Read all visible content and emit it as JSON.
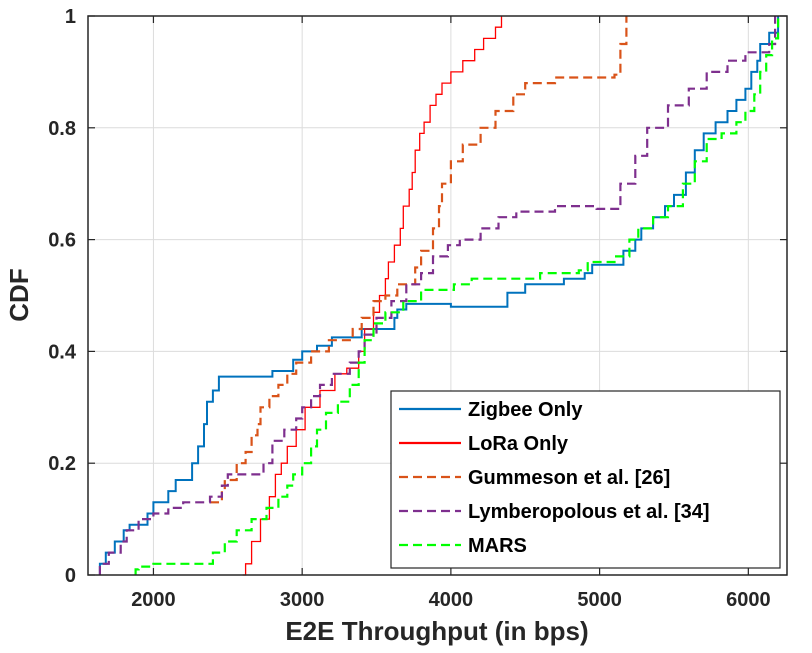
{
  "chart_data": {
    "type": "line",
    "step": true,
    "xlabel": "E2E Throughput (in bps)",
    "ylabel": "CDF",
    "xlim": [
      1560,
      6260
    ],
    "ylim": [
      0,
      1
    ],
    "xticks": [
      2000,
      3000,
      4000,
      5000,
      6000
    ],
    "yticks": [
      0,
      0.2,
      0.4,
      0.6,
      0.8,
      1
    ],
    "grid": true,
    "legend_position": "bottom-right",
    "series": [
      {
        "name": "Zigbee Only",
        "color": "#0072BD",
        "dash": "solid",
        "points": [
          [
            1640,
            0
          ],
          [
            1640,
            0.02
          ],
          [
            1680,
            0.04
          ],
          [
            1740,
            0.06
          ],
          [
            1800,
            0.08
          ],
          [
            1840,
            0.09
          ],
          [
            1960,
            0.11
          ],
          [
            2000,
            0.13
          ],
          [
            2100,
            0.15
          ],
          [
            2150,
            0.17
          ],
          [
            2260,
            0.2
          ],
          [
            2300,
            0.23
          ],
          [
            2340,
            0.27
          ],
          [
            2360,
            0.31
          ],
          [
            2400,
            0.33
          ],
          [
            2440,
            0.355
          ],
          [
            2800,
            0.365
          ],
          [
            2940,
            0.385
          ],
          [
            3000,
            0.4
          ],
          [
            3100,
            0.41
          ],
          [
            3200,
            0.425
          ],
          [
            3400,
            0.44
          ],
          [
            3620,
            0.46
          ],
          [
            3640,
            0.475
          ],
          [
            3700,
            0.485
          ],
          [
            4000,
            0.48
          ],
          [
            4380,
            0.505
          ],
          [
            4500,
            0.52
          ],
          [
            4760,
            0.53
          ],
          [
            4900,
            0.54
          ],
          [
            4950,
            0.555
          ],
          [
            5140,
            0.555
          ],
          [
            5160,
            0.58
          ],
          [
            5240,
            0.6
          ],
          [
            5280,
            0.62
          ],
          [
            5360,
            0.64
          ],
          [
            5440,
            0.66
          ],
          [
            5500,
            0.68
          ],
          [
            5580,
            0.72
          ],
          [
            5640,
            0.76
          ],
          [
            5700,
            0.79
          ],
          [
            5780,
            0.81
          ],
          [
            5860,
            0.83
          ],
          [
            5920,
            0.85
          ],
          [
            5980,
            0.87
          ],
          [
            6020,
            0.9
          ],
          [
            6060,
            0.92
          ],
          [
            6080,
            0.95
          ],
          [
            6140,
            0.97
          ],
          [
            6200,
            1.0
          ]
        ]
      },
      {
        "name": "LoRa Only",
        "color": "#FF0000",
        "dash": "solid",
        "points": [
          [
            2600,
            0
          ],
          [
            2620,
            0.02
          ],
          [
            2660,
            0.06
          ],
          [
            2720,
            0.1
          ],
          [
            2780,
            0.14
          ],
          [
            2820,
            0.18
          ],
          [
            2860,
            0.2
          ],
          [
            2900,
            0.23
          ],
          [
            2960,
            0.26
          ],
          [
            3020,
            0.3
          ],
          [
            3120,
            0.33
          ],
          [
            3220,
            0.36
          ],
          [
            3300,
            0.37
          ],
          [
            3380,
            0.4
          ],
          [
            3420,
            0.44
          ],
          [
            3480,
            0.47
          ],
          [
            3520,
            0.5
          ],
          [
            3560,
            0.53
          ],
          [
            3580,
            0.56
          ],
          [
            3620,
            0.59
          ],
          [
            3660,
            0.62
          ],
          [
            3680,
            0.66
          ],
          [
            3720,
            0.69
          ],
          [
            3740,
            0.72
          ],
          [
            3760,
            0.76
          ],
          [
            3790,
            0.79
          ],
          [
            3820,
            0.81
          ],
          [
            3860,
            0.84
          ],
          [
            3900,
            0.86
          ],
          [
            3940,
            0.88
          ],
          [
            4000,
            0.9
          ],
          [
            4080,
            0.92
          ],
          [
            4160,
            0.94
          ],
          [
            4220,
            0.96
          ],
          [
            4300,
            0.98
          ],
          [
            4340,
            1.0
          ]
        ]
      },
      {
        "name": "Gummeson et al. [26]",
        "color": "#D95319",
        "dash": "dashed",
        "points": [
          [
            2380,
            0.13
          ],
          [
            2460,
            0.15
          ],
          [
            2480,
            0.17
          ],
          [
            2560,
            0.2
          ],
          [
            2620,
            0.22
          ],
          [
            2660,
            0.25
          ],
          [
            2700,
            0.27
          ],
          [
            2720,
            0.3
          ],
          [
            2780,
            0.32
          ],
          [
            2840,
            0.34
          ],
          [
            2900,
            0.36
          ],
          [
            2960,
            0.38
          ],
          [
            3060,
            0.4
          ],
          [
            3180,
            0.42
          ],
          [
            3340,
            0.44
          ],
          [
            3400,
            0.46
          ],
          [
            3480,
            0.49
          ],
          [
            3560,
            0.5
          ],
          [
            3640,
            0.52
          ],
          [
            3760,
            0.55
          ],
          [
            3800,
            0.58
          ],
          [
            3880,
            0.62
          ],
          [
            3920,
            0.66
          ],
          [
            3940,
            0.7
          ],
          [
            4000,
            0.74
          ],
          [
            4080,
            0.77
          ],
          [
            4200,
            0.8
          ],
          [
            4300,
            0.83
          ],
          [
            4420,
            0.86
          ],
          [
            4500,
            0.88
          ],
          [
            4700,
            0.89
          ],
          [
            5100,
            0.895
          ],
          [
            5140,
            0.95
          ],
          [
            5180,
            1.0
          ]
        ]
      },
      {
        "name": "Lymberopolous et al. [34]",
        "color": "#7E2F8E",
        "dash": "dashed",
        "points": [
          [
            1640,
            0
          ],
          [
            1640,
            0.02
          ],
          [
            1700,
            0.04
          ],
          [
            1780,
            0.06
          ],
          [
            1820,
            0.08
          ],
          [
            1900,
            0.1
          ],
          [
            2000,
            0.11
          ],
          [
            2100,
            0.12
          ],
          [
            2200,
            0.13
          ],
          [
            2380,
            0.14
          ],
          [
            2460,
            0.16
          ],
          [
            2500,
            0.18
          ],
          [
            2740,
            0.2
          ],
          [
            2800,
            0.24
          ],
          [
            2880,
            0.26
          ],
          [
            2960,
            0.28
          ],
          [
            3000,
            0.3
          ],
          [
            3060,
            0.32
          ],
          [
            3120,
            0.34
          ],
          [
            3200,
            0.36
          ],
          [
            3320,
            0.38
          ],
          [
            3380,
            0.4
          ],
          [
            3420,
            0.43
          ],
          [
            3500,
            0.46
          ],
          [
            3600,
            0.49
          ],
          [
            3700,
            0.52
          ],
          [
            3800,
            0.54
          ],
          [
            3880,
            0.57
          ],
          [
            3980,
            0.59
          ],
          [
            4060,
            0.6
          ],
          [
            4200,
            0.62
          ],
          [
            4320,
            0.64
          ],
          [
            4440,
            0.65
          ],
          [
            4700,
            0.66
          ],
          [
            4980,
            0.655
          ],
          [
            5140,
            0.7
          ],
          [
            5240,
            0.75
          ],
          [
            5320,
            0.8
          ],
          [
            5460,
            0.84
          ],
          [
            5600,
            0.87
          ],
          [
            5720,
            0.9
          ],
          [
            5860,
            0.92
          ],
          [
            5980,
            0.935
          ],
          [
            6140,
            0.95
          ],
          [
            6180,
            1.0
          ]
        ]
      },
      {
        "name": "MARS",
        "color": "#00FF00",
        "dash": "dashed",
        "points": [
          [
            1880,
            0
          ],
          [
            1880,
            0.01
          ],
          [
            1900,
            0.015
          ],
          [
            2000,
            0.02
          ],
          [
            2360,
            0.02
          ],
          [
            2400,
            0.04
          ],
          [
            2480,
            0.06
          ],
          [
            2560,
            0.08
          ],
          [
            2660,
            0.1
          ],
          [
            2760,
            0.12
          ],
          [
            2840,
            0.14
          ],
          [
            2900,
            0.16
          ],
          [
            2940,
            0.18
          ],
          [
            3000,
            0.2
          ],
          [
            3060,
            0.23
          ],
          [
            3100,
            0.26
          ],
          [
            3160,
            0.29
          ],
          [
            3240,
            0.31
          ],
          [
            3320,
            0.34
          ],
          [
            3380,
            0.38
          ],
          [
            3420,
            0.42
          ],
          [
            3480,
            0.45
          ],
          [
            3560,
            0.47
          ],
          [
            3680,
            0.49
          ],
          [
            3800,
            0.51
          ],
          [
            4020,
            0.52
          ],
          [
            4140,
            0.53
          ],
          [
            4600,
            0.54
          ],
          [
            4860,
            0.545
          ],
          [
            4920,
            0.56
          ],
          [
            5100,
            0.57
          ],
          [
            5200,
            0.6
          ],
          [
            5260,
            0.62
          ],
          [
            5360,
            0.64
          ],
          [
            5460,
            0.66
          ],
          [
            5560,
            0.7
          ],
          [
            5640,
            0.74
          ],
          [
            5720,
            0.78
          ],
          [
            5820,
            0.79
          ],
          [
            5920,
            0.81
          ],
          [
            5980,
            0.83
          ],
          [
            6040,
            0.86
          ],
          [
            6080,
            0.9
          ],
          [
            6120,
            0.93
          ],
          [
            6160,
            0.96
          ],
          [
            6200,
            1.0
          ]
        ]
      }
    ]
  }
}
